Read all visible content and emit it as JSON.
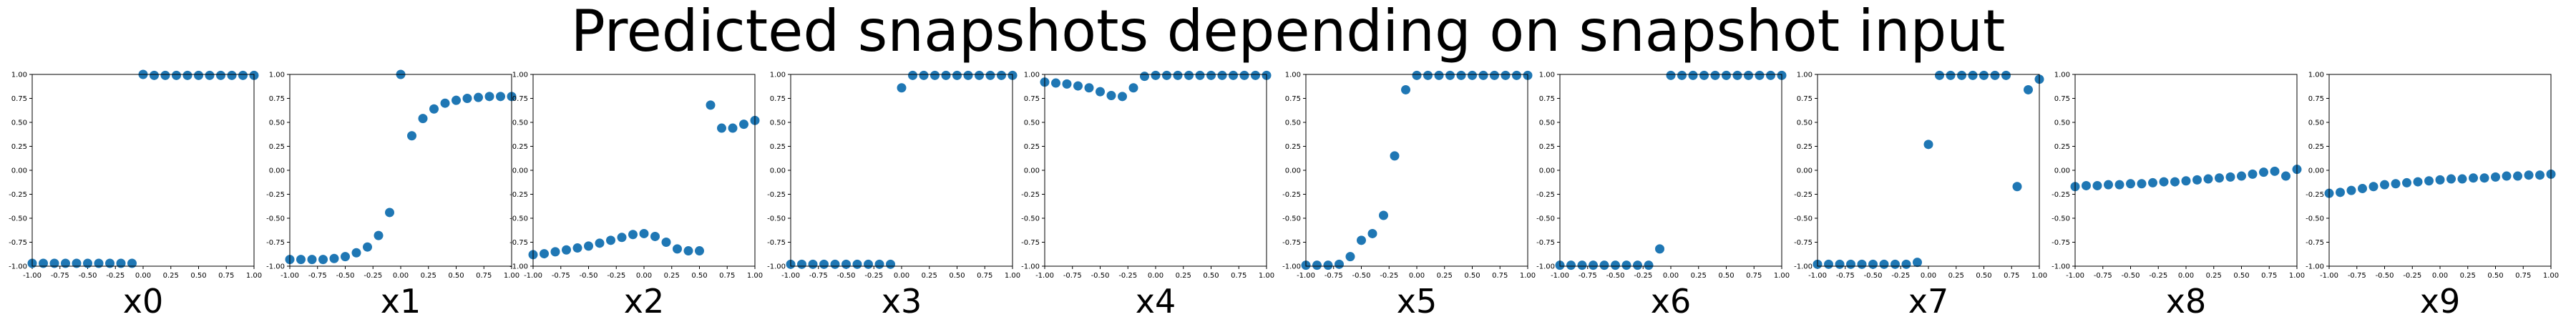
{
  "suptitle": "Predicted snapshots depending on snapshot input",
  "style": {
    "marker_color": "#1f77b4"
  },
  "chart_data": [
    {
      "type": "scatter",
      "xlabel": "x0",
      "xlim": [
        -1.0,
        1.0
      ],
      "ylim": [
        -1.0,
        1.0
      ],
      "xticks": [
        "-1.00",
        "-0.75",
        "-0.50",
        "-0.25",
        "0.00",
        "0.25",
        "0.50",
        "0.75",
        "1.00"
      ],
      "yticks": [
        "-1.00",
        "-0.75",
        "-0.50",
        "-0.25",
        "0.00",
        "0.25",
        "0.50",
        "0.75",
        "1.00"
      ],
      "x": [
        -1.0,
        -0.9,
        -0.8,
        -0.7,
        -0.6,
        -0.5,
        -0.4,
        -0.3,
        -0.2,
        -0.1,
        0.0,
        0.1,
        0.2,
        0.3,
        0.4,
        0.5,
        0.6,
        0.7,
        0.8,
        0.9,
        1.0
      ],
      "y": [
        -0.97,
        -0.97,
        -0.97,
        -0.97,
        -0.97,
        -0.97,
        -0.97,
        -0.97,
        -0.97,
        -0.97,
        1.0,
        0.99,
        0.99,
        0.99,
        0.99,
        0.99,
        0.99,
        0.99,
        0.99,
        0.99,
        0.99
      ]
    },
    {
      "type": "scatter",
      "xlabel": "x1",
      "xlim": [
        -1.0,
        1.0
      ],
      "ylim": [
        -1.0,
        1.0
      ],
      "xticks": [
        "-1.00",
        "-0.75",
        "-0.50",
        "-0.25",
        "0.00",
        "0.25",
        "0.50",
        "0.75",
        "1.00"
      ],
      "yticks": [
        "-1.00",
        "-0.75",
        "-0.50",
        "-0.25",
        "0.00",
        "0.25",
        "0.50",
        "0.75",
        "1.00"
      ],
      "x": [
        -1.0,
        -0.9,
        -0.8,
        -0.7,
        -0.6,
        -0.5,
        -0.4,
        -0.3,
        -0.2,
        -0.1,
        0.0,
        0.1,
        0.2,
        0.3,
        0.4,
        0.5,
        0.6,
        0.7,
        0.8,
        0.9,
        1.0
      ],
      "y": [
        -0.93,
        -0.93,
        -0.93,
        -0.93,
        -0.92,
        -0.9,
        -0.86,
        -0.8,
        -0.68,
        -0.44,
        1.0,
        0.36,
        0.54,
        0.64,
        0.7,
        0.73,
        0.75,
        0.76,
        0.77,
        0.77,
        0.77
      ]
    },
    {
      "type": "scatter",
      "xlabel": "x2",
      "xlim": [
        -1.0,
        1.0
      ],
      "ylim": [
        -1.0,
        1.0
      ],
      "xticks": [
        "-1.00",
        "-0.75",
        "-0.50",
        "-0.25",
        "0.00",
        "0.25",
        "0.50",
        "0.75",
        "1.00"
      ],
      "yticks": [
        "-1.00",
        "-0.75",
        "-0.50",
        "-0.25",
        "0.00",
        "0.25",
        "0.50",
        "0.75",
        "1.00"
      ],
      "x": [
        -1.0,
        -0.9,
        -0.8,
        -0.7,
        -0.6,
        -0.5,
        -0.4,
        -0.3,
        -0.2,
        -0.1,
        0.0,
        0.1,
        0.2,
        0.3,
        0.4,
        0.5,
        0.6,
        0.7,
        0.8,
        0.9,
        1.0
      ],
      "y": [
        -0.88,
        -0.87,
        -0.85,
        -0.83,
        -0.81,
        -0.79,
        -0.76,
        -0.73,
        -0.7,
        -0.67,
        -0.66,
        -0.69,
        -0.75,
        -0.82,
        -0.84,
        -0.84,
        0.68,
        0.44,
        0.44,
        0.48,
        0.52
      ]
    },
    {
      "type": "scatter",
      "xlabel": "x3",
      "xlim": [
        -1.0,
        1.0
      ],
      "ylim": [
        -1.0,
        1.0
      ],
      "xticks": [
        "-1.00",
        "-0.75",
        "-0.50",
        "-0.25",
        "0.00",
        "0.25",
        "0.50",
        "0.75",
        "1.00"
      ],
      "yticks": [
        "-1.00",
        "-0.75",
        "-0.50",
        "-0.25",
        "0.00",
        "0.25",
        "0.50",
        "0.75",
        "1.00"
      ],
      "x": [
        -1.0,
        -0.9,
        -0.8,
        -0.7,
        -0.6,
        -0.5,
        -0.4,
        -0.3,
        -0.2,
        -0.1,
        0.0,
        0.1,
        0.2,
        0.3,
        0.4,
        0.5,
        0.6,
        0.7,
        0.8,
        0.9,
        1.0
      ],
      "y": [
        -0.98,
        -0.98,
        -0.98,
        -0.98,
        -0.98,
        -0.98,
        -0.98,
        -0.98,
        -0.98,
        -0.98,
        0.86,
        0.99,
        0.99,
        0.99,
        0.99,
        0.99,
        0.99,
        0.99,
        0.99,
        0.99,
        0.99
      ]
    },
    {
      "type": "scatter",
      "xlabel": "x4",
      "xlim": [
        -1.0,
        1.0
      ],
      "ylim": [
        -1.0,
        1.0
      ],
      "xticks": [
        "-1.00",
        "-0.75",
        "-0.50",
        "-0.25",
        "0.00",
        "0.25",
        "0.50",
        "0.75",
        "1.00"
      ],
      "yticks": [
        "-1.00",
        "-0.75",
        "-0.50",
        "-0.25",
        "0.00",
        "0.25",
        "0.50",
        "0.75",
        "1.00"
      ],
      "x": [
        -1.0,
        -0.9,
        -0.8,
        -0.7,
        -0.6,
        -0.5,
        -0.4,
        -0.3,
        -0.2,
        -0.1,
        0.0,
        0.1,
        0.2,
        0.3,
        0.4,
        0.5,
        0.6,
        0.7,
        0.8,
        0.9,
        1.0
      ],
      "y": [
        0.92,
        0.91,
        0.9,
        0.88,
        0.86,
        0.82,
        0.78,
        0.77,
        0.86,
        0.98,
        0.99,
        0.99,
        0.99,
        0.99,
        0.99,
        0.99,
        0.99,
        0.99,
        0.99,
        0.99,
        0.99
      ]
    },
    {
      "type": "scatter",
      "xlabel": "x5",
      "xlim": [
        -1.0,
        1.0
      ],
      "ylim": [
        -1.0,
        1.0
      ],
      "xticks": [
        "-1.00",
        "-0.75",
        "-0.50",
        "-0.25",
        "0.00",
        "0.25",
        "0.50",
        "0.75",
        "1.00"
      ],
      "yticks": [
        "-1.00",
        "-0.75",
        "-0.50",
        "-0.25",
        "0.00",
        "0.25",
        "0.50",
        "0.75",
        "1.00"
      ],
      "x": [
        -1.0,
        -0.9,
        -0.8,
        -0.7,
        -0.6,
        -0.5,
        -0.4,
        -0.3,
        -0.2,
        -0.1,
        0.0,
        0.1,
        0.2,
        0.3,
        0.4,
        0.5,
        0.6,
        0.7,
        0.8,
        0.9,
        1.0
      ],
      "y": [
        -0.99,
        -0.99,
        -0.99,
        -0.98,
        -0.9,
        -0.73,
        -0.66,
        -0.47,
        0.15,
        0.84,
        0.99,
        0.99,
        0.99,
        0.99,
        0.99,
        0.99,
        0.99,
        0.99,
        0.99,
        0.99,
        0.99
      ]
    },
    {
      "type": "scatter",
      "xlabel": "x6",
      "xlim": [
        -1.0,
        1.0
      ],
      "ylim": [
        -1.0,
        1.0
      ],
      "xticks": [
        "-1.00",
        "-0.75",
        "-0.50",
        "-0.25",
        "0.00",
        "0.25",
        "0.50",
        "0.75",
        "1.00"
      ],
      "yticks": [
        "-1.00",
        "-0.75",
        "-0.50",
        "-0.25",
        "0.00",
        "0.25",
        "0.50",
        "0.75",
        "1.00"
      ],
      "x": [
        -1.0,
        -0.9,
        -0.8,
        -0.7,
        -0.6,
        -0.5,
        -0.4,
        -0.3,
        -0.2,
        -0.1,
        0.0,
        0.1,
        0.2,
        0.3,
        0.4,
        0.5,
        0.6,
        0.7,
        0.8,
        0.9,
        1.0
      ],
      "y": [
        -0.99,
        -0.99,
        -0.99,
        -0.99,
        -0.99,
        -0.99,
        -0.99,
        -0.99,
        -0.99,
        -0.82,
        0.99,
        0.99,
        0.99,
        0.99,
        0.99,
        0.99,
        0.99,
        0.99,
        0.99,
        0.99,
        0.99
      ]
    },
    {
      "type": "scatter",
      "xlabel": "x7",
      "xlim": [
        -1.0,
        1.0
      ],
      "ylim": [
        -1.0,
        1.0
      ],
      "xticks": [
        "-1.00",
        "-0.75",
        "-0.50",
        "-0.25",
        "0.00",
        "0.25",
        "0.50",
        "0.75",
        "1.00"
      ],
      "yticks": [
        "-1.00",
        "-0.75",
        "-0.50",
        "-0.25",
        "0.00",
        "0.25",
        "0.50",
        "0.75",
        "1.00"
      ],
      "x": [
        -1.0,
        -0.9,
        -0.8,
        -0.7,
        -0.6,
        -0.5,
        -0.4,
        -0.3,
        -0.2,
        -0.1,
        0.0,
        0.1,
        0.2,
        0.3,
        0.4,
        0.5,
        0.6,
        0.7,
        0.8,
        0.9,
        1.0
      ],
      "y": [
        -0.98,
        -0.98,
        -0.98,
        -0.98,
        -0.98,
        -0.98,
        -0.98,
        -0.98,
        -0.98,
        -0.96,
        0.27,
        0.99,
        0.99,
        0.99,
        0.99,
        0.99,
        0.99,
        0.99,
        -0.17,
        0.84,
        0.95
      ]
    },
    {
      "type": "scatter",
      "xlabel": "x8",
      "xlim": [
        -1.0,
        1.0
      ],
      "ylim": [
        -1.0,
        1.0
      ],
      "xticks": [
        "-1.00",
        "-0.75",
        "-0.50",
        "-0.25",
        "0.00",
        "0.25",
        "0.50",
        "0.75",
        "1.00"
      ],
      "yticks": [
        "-1.00",
        "-0.75",
        "-0.50",
        "-0.25",
        "0.00",
        "0.25",
        "0.50",
        "0.75",
        "1.00"
      ],
      "x": [
        -1.0,
        -0.9,
        -0.8,
        -0.7,
        -0.6,
        -0.5,
        -0.4,
        -0.3,
        -0.2,
        -0.1,
        0.0,
        0.1,
        0.2,
        0.3,
        0.4,
        0.5,
        0.6,
        0.7,
        0.8,
        0.9,
        1.0
      ],
      "y": [
        -0.17,
        -0.16,
        -0.16,
        -0.15,
        -0.15,
        -0.14,
        -0.14,
        -0.13,
        -0.12,
        -0.12,
        -0.11,
        -0.1,
        -0.09,
        -0.08,
        -0.07,
        -0.06,
        -0.04,
        -0.02,
        -0.01,
        -0.06,
        0.01
      ]
    },
    {
      "type": "scatter",
      "xlabel": "x9",
      "xlim": [
        -1.0,
        1.0
      ],
      "ylim": [
        -1.0,
        1.0
      ],
      "xticks": [
        "-1.00",
        "-0.75",
        "-0.50",
        "-0.25",
        "0.00",
        "0.25",
        "0.50",
        "0.75",
        "1.00"
      ],
      "yticks": [
        "-1.00",
        "-0.75",
        "-0.50",
        "-0.25",
        "0.00",
        "0.25",
        "0.50",
        "0.75",
        "1.00"
      ],
      "x": [
        -1.0,
        -0.9,
        -0.8,
        -0.7,
        -0.6,
        -0.5,
        -0.4,
        -0.3,
        -0.2,
        -0.1,
        0.0,
        0.1,
        0.2,
        0.3,
        0.4,
        0.5,
        0.6,
        0.7,
        0.8,
        0.9,
        1.0
      ],
      "y": [
        -0.24,
        -0.23,
        -0.21,
        -0.19,
        -0.17,
        -0.15,
        -0.14,
        -0.13,
        -0.12,
        -0.11,
        -0.1,
        -0.09,
        -0.09,
        -0.08,
        -0.08,
        -0.07,
        -0.06,
        -0.06,
        -0.05,
        -0.05,
        -0.04
      ]
    }
  ]
}
